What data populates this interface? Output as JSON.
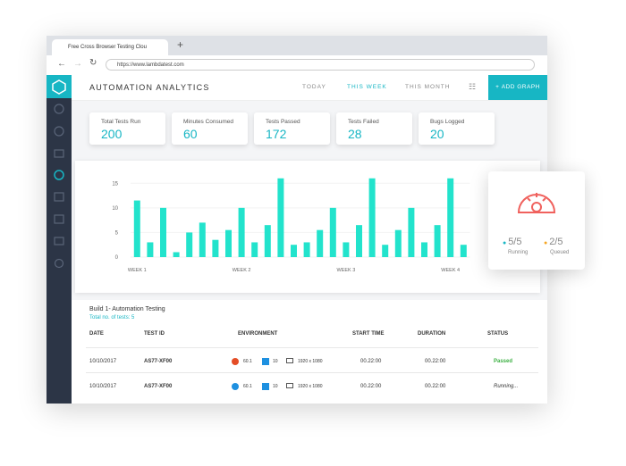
{
  "browser": {
    "tab_title": "Free Cross Browser Testing Clou",
    "url": "https://www.lambdatest.com"
  },
  "header": {
    "title": "AUTOMATION ANALYTICS",
    "tabs": [
      "TODAY",
      "THIS WEEK",
      "THIS MONTH"
    ],
    "button": "ADD GRAPH"
  },
  "stats": [
    {
      "label": "Total Tests Run",
      "value": 200
    },
    {
      "label": "Minutes Consumed",
      "value": 60
    },
    {
      "label": "Tests Passed",
      "value": 172
    },
    {
      "label": "Tests Failed",
      "value": 28
    },
    {
      "label": "Bugs Logged",
      "value": 20
    }
  ],
  "chart_data": {
    "type": "bar",
    "color": "#22e3cc",
    "categories": [
      "WEEK 1",
      null,
      null,
      null,
      null,
      null,
      null,
      null,
      "WEEK 2",
      null,
      null,
      null,
      null,
      null,
      null,
      null,
      "WEEK 3",
      null,
      null,
      null,
      null,
      null,
      null,
      null,
      "WEEK 4",
      null
    ],
    "values": [
      11.5,
      3,
      10,
      1,
      5,
      7,
      3.5,
      5.5,
      10,
      3,
      6.5,
      16,
      2.5,
      3,
      5.5,
      10,
      3,
      6.5,
      16,
      2.5,
      5.5,
      10,
      3,
      6.5,
      16,
      2.5
    ],
    "ylim": [
      0,
      16.5
    ],
    "yticks": [
      0,
      5,
      10,
      15
    ],
    "grid": true
  },
  "status_card": {
    "running": "5/5",
    "running_label": "Running",
    "queued": "2/5",
    "queued_label": "Queued"
  },
  "table": {
    "title": "Build 1- Automation Testing",
    "subtitle": "Total no. of tests: 5",
    "columns": [
      "DATE",
      "TEST ID",
      "ENVIRONMENT",
      "START TIME",
      "DURATION",
      "STATUS"
    ],
    "rows": [
      [
        "10/10/2017",
        "AS77-XF00",
        "60.1",
        "10",
        "1920 x 1080",
        "00.22:00",
        "00.22:00",
        "Passed"
      ],
      [
        "10/10/2017",
        "AS77-XF00",
        "60.1",
        "10",
        "1920 x 1080",
        "00.22:00",
        "00.22:00",
        "Running..."
      ]
    ]
  }
}
